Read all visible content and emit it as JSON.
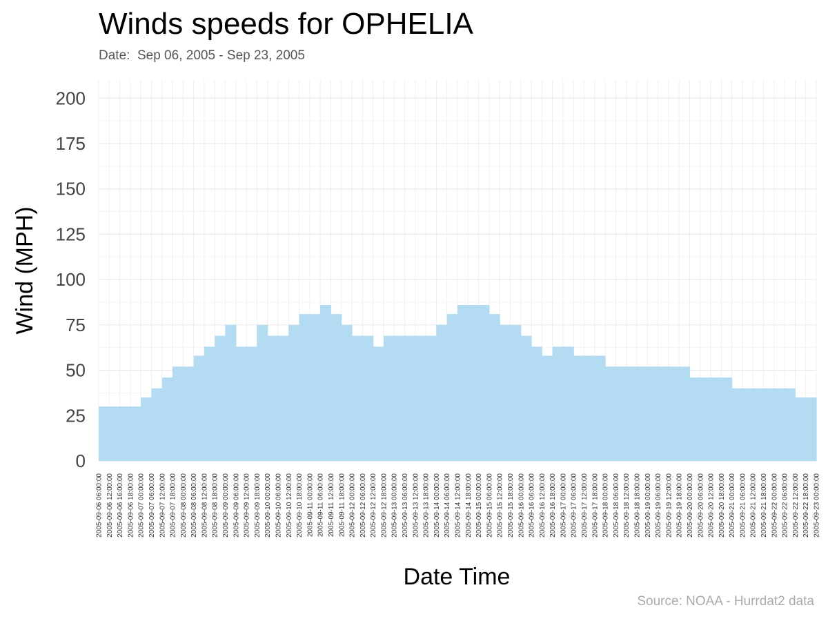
{
  "chart_data": {
    "type": "area",
    "title": "Winds speeds for OPHELIA",
    "subtitle": "Date:  Sep 06, 2005 - Sep 23, 2005",
    "xlabel": "Date Time",
    "ylabel": "Wind (MPH)",
    "source": "Source: NOAA - Hurrdat2 data",
    "ylim": [
      0,
      210
    ],
    "yticks": [
      0,
      25,
      50,
      75,
      100,
      125,
      150,
      175,
      200
    ],
    "grid": true,
    "legend": "none",
    "color": "#b3dcf2",
    "x": [
      "2005-09-06 06:00:00",
      "2005-09-06 12:00:00",
      "2005-09-06 16:00:00",
      "2005-09-06 18:00:00",
      "2005-09-07 00:00:00",
      "2005-09-07 06:00:00",
      "2005-09-07 12:00:00",
      "2005-09-07 18:00:00",
      "2005-09-08 00:00:00",
      "2005-09-08 06:00:00",
      "2005-09-08 12:00:00",
      "2005-09-08 18:00:00",
      "2005-09-09 00:00:00",
      "2005-09-09 06:00:00",
      "2005-09-09 12:00:00",
      "2005-09-09 18:00:00",
      "2005-09-10 00:00:00",
      "2005-09-10 06:00:00",
      "2005-09-10 12:00:00",
      "2005-09-10 18:00:00",
      "2005-09-11 00:00:00",
      "2005-09-11 06:00:00",
      "2005-09-11 12:00:00",
      "2005-09-11 18:00:00",
      "2005-09-12 00:00:00",
      "2005-09-12 06:00:00",
      "2005-09-12 12:00:00",
      "2005-09-12 18:00:00",
      "2005-09-13 00:00:00",
      "2005-09-13 06:00:00",
      "2005-09-13 12:00:00",
      "2005-09-13 18:00:00",
      "2005-09-14 00:00:00",
      "2005-09-14 06:00:00",
      "2005-09-14 12:00:00",
      "2005-09-14 18:00:00",
      "2005-09-15 00:00:00",
      "2005-09-15 06:00:00",
      "2005-09-15 12:00:00",
      "2005-09-15 18:00:00",
      "2005-09-16 00:00:00",
      "2005-09-16 06:00:00",
      "2005-09-16 12:00:00",
      "2005-09-16 18:00:00",
      "2005-09-17 00:00:00",
      "2005-09-17 06:00:00",
      "2005-09-17 12:00:00",
      "2005-09-17 18:00:00",
      "2005-09-18 00:00:00",
      "2005-09-18 06:00:00",
      "2005-09-18 12:00:00",
      "2005-09-18 18:00:00",
      "2005-09-19 00:00:00",
      "2005-09-19 06:00:00",
      "2005-09-19 12:00:00",
      "2005-09-19 18:00:00",
      "2005-09-20 00:00:00",
      "2005-09-20 06:00:00",
      "2005-09-20 12:00:00",
      "2005-09-20 18:00:00",
      "2005-09-21 00:00:00",
      "2005-09-21 06:00:00",
      "2005-09-21 12:00:00",
      "2005-09-21 18:00:00",
      "2005-09-22 00:00:00",
      "2005-09-22 06:00:00",
      "2005-09-22 12:00:00",
      "2005-09-22 18:00:00",
      "2005-09-23 00:00:00"
    ],
    "values": [
      30,
      30,
      30,
      30,
      35,
      40,
      46,
      52,
      52,
      58,
      63,
      69,
      75,
      63,
      63,
      75,
      69,
      69,
      75,
      81,
      81,
      86,
      81,
      75,
      69,
      69,
      63,
      69,
      69,
      69,
      69,
      69,
      75,
      81,
      86,
      86,
      86,
      81,
      75,
      75,
      69,
      63,
      58,
      63,
      63,
      58,
      58,
      58,
      52,
      52,
      52,
      52,
      52,
      52,
      52,
      52,
      46,
      46,
      46,
      46,
      40,
      40,
      40,
      40,
      40,
      40,
      35,
      35,
      35
    ]
  }
}
